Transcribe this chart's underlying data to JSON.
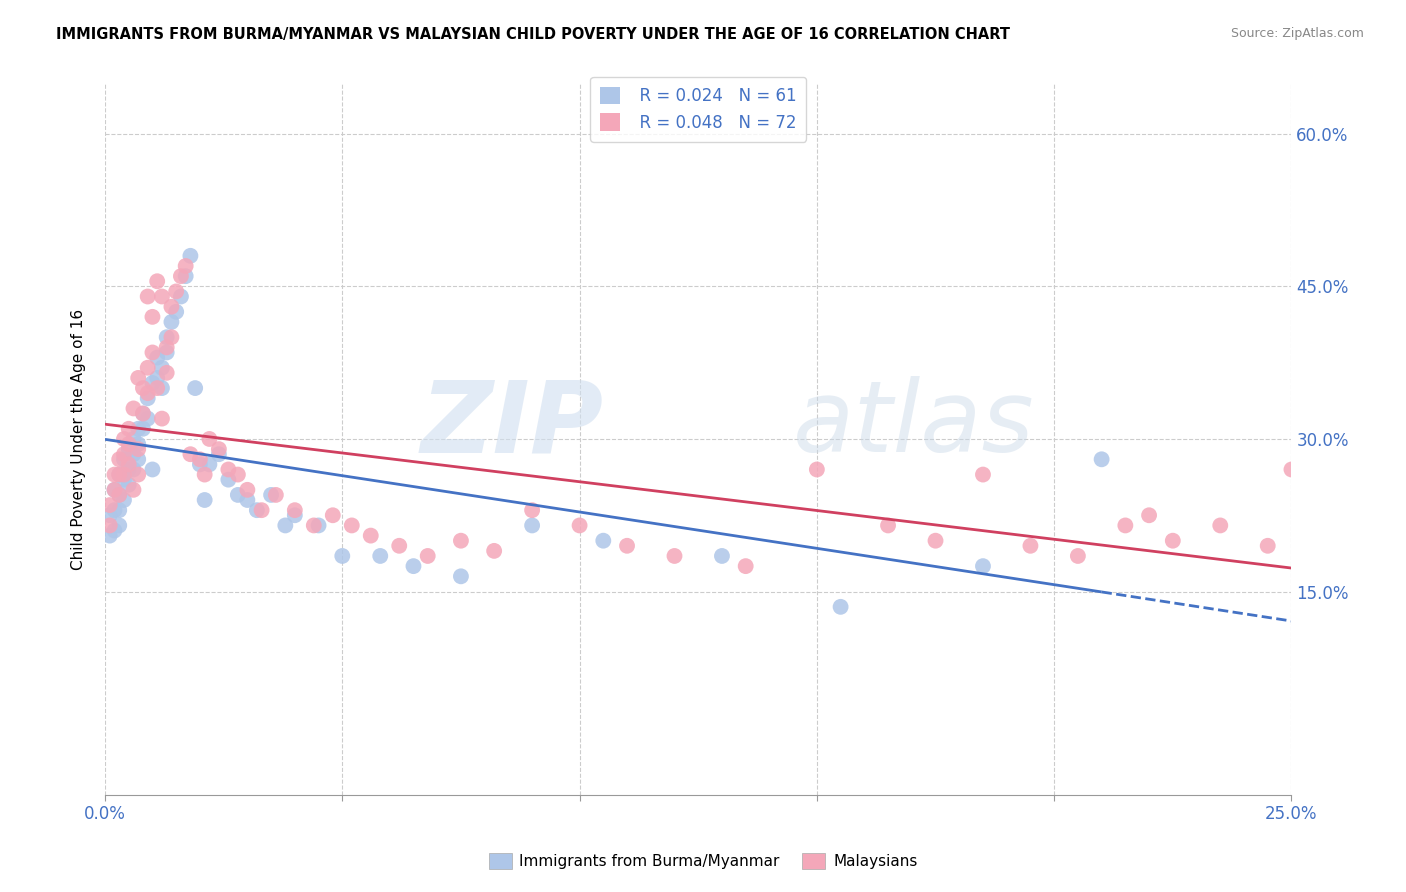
{
  "title": "IMMIGRANTS FROM BURMA/MYANMAR VS MALAYSIAN CHILD POVERTY UNDER THE AGE OF 16 CORRELATION CHART",
  "source": "Source: ZipAtlas.com",
  "ylabel": "Child Poverty Under the Age of 16",
  "y_ticks": [
    "15.0%",
    "30.0%",
    "45.0%",
    "60.0%"
  ],
  "y_ticks_vals": [
    0.15,
    0.3,
    0.45,
    0.6
  ],
  "x_range": [
    0.0,
    0.25
  ],
  "y_range": [
    -0.05,
    0.65
  ],
  "legend_blue_r": "R = 0.024",
  "legend_blue_n": "N = 61",
  "legend_pink_r": "R = 0.048",
  "legend_pink_n": "N = 72",
  "legend_label_blue": "Immigrants from Burma/Myanmar",
  "legend_label_pink": "Malaysians",
  "blue_color": "#aec6e8",
  "pink_color": "#f4a7b9",
  "line_blue_color": "#4472c4",
  "line_pink_color": "#d04060",
  "watermark_zip": "ZIP",
  "watermark_atlas": "atlas",
  "x_tick_positions": [
    0.0,
    0.05,
    0.1,
    0.15,
    0.2,
    0.25
  ],
  "blue_points_x": [
    0.001,
    0.001,
    0.002,
    0.002,
    0.002,
    0.003,
    0.003,
    0.003,
    0.003,
    0.004,
    0.004,
    0.004,
    0.005,
    0.005,
    0.005,
    0.006,
    0.006,
    0.006,
    0.007,
    0.007,
    0.007,
    0.008,
    0.008,
    0.009,
    0.009,
    0.01,
    0.01,
    0.011,
    0.011,
    0.012,
    0.012,
    0.013,
    0.013,
    0.014,
    0.015,
    0.016,
    0.017,
    0.018,
    0.019,
    0.02,
    0.021,
    0.022,
    0.024,
    0.026,
    0.028,
    0.03,
    0.032,
    0.035,
    0.038,
    0.04,
    0.045,
    0.05,
    0.058,
    0.065,
    0.075,
    0.09,
    0.105,
    0.13,
    0.155,
    0.185,
    0.21
  ],
  "blue_points_y": [
    0.225,
    0.205,
    0.25,
    0.23,
    0.21,
    0.265,
    0.245,
    0.23,
    0.215,
    0.28,
    0.26,
    0.24,
    0.29,
    0.27,
    0.255,
    0.3,
    0.285,
    0.27,
    0.31,
    0.295,
    0.28,
    0.325,
    0.31,
    0.34,
    0.32,
    0.355,
    0.27,
    0.38,
    0.36,
    0.37,
    0.35,
    0.4,
    0.385,
    0.415,
    0.425,
    0.44,
    0.46,
    0.48,
    0.35,
    0.275,
    0.24,
    0.275,
    0.285,
    0.26,
    0.245,
    0.24,
    0.23,
    0.245,
    0.215,
    0.225,
    0.215,
    0.185,
    0.185,
    0.175,
    0.165,
    0.215,
    0.2,
    0.185,
    0.135,
    0.175,
    0.28
  ],
  "pink_points_x": [
    0.001,
    0.001,
    0.002,
    0.002,
    0.003,
    0.003,
    0.003,
    0.004,
    0.004,
    0.004,
    0.005,
    0.005,
    0.005,
    0.006,
    0.006,
    0.007,
    0.007,
    0.007,
    0.008,
    0.008,
    0.009,
    0.009,
    0.009,
    0.01,
    0.01,
    0.011,
    0.011,
    0.012,
    0.012,
    0.013,
    0.013,
    0.014,
    0.014,
    0.015,
    0.016,
    0.017,
    0.018,
    0.02,
    0.021,
    0.022,
    0.024,
    0.026,
    0.028,
    0.03,
    0.033,
    0.036,
    0.04,
    0.044,
    0.048,
    0.052,
    0.056,
    0.062,
    0.068,
    0.075,
    0.082,
    0.09,
    0.1,
    0.11,
    0.12,
    0.135,
    0.15,
    0.165,
    0.175,
    0.185,
    0.195,
    0.205,
    0.215,
    0.22,
    0.225,
    0.235,
    0.245,
    0.25
  ],
  "pink_points_y": [
    0.235,
    0.215,
    0.265,
    0.25,
    0.28,
    0.265,
    0.245,
    0.3,
    0.285,
    0.265,
    0.31,
    0.295,
    0.275,
    0.33,
    0.25,
    0.36,
    0.29,
    0.265,
    0.35,
    0.325,
    0.44,
    0.37,
    0.345,
    0.42,
    0.385,
    0.455,
    0.35,
    0.44,
    0.32,
    0.39,
    0.365,
    0.43,
    0.4,
    0.445,
    0.46,
    0.47,
    0.285,
    0.28,
    0.265,
    0.3,
    0.29,
    0.27,
    0.265,
    0.25,
    0.23,
    0.245,
    0.23,
    0.215,
    0.225,
    0.215,
    0.205,
    0.195,
    0.185,
    0.2,
    0.19,
    0.23,
    0.215,
    0.195,
    0.185,
    0.175,
    0.27,
    0.215,
    0.2,
    0.265,
    0.195,
    0.185,
    0.215,
    0.225,
    0.2,
    0.215,
    0.195,
    0.27
  ]
}
